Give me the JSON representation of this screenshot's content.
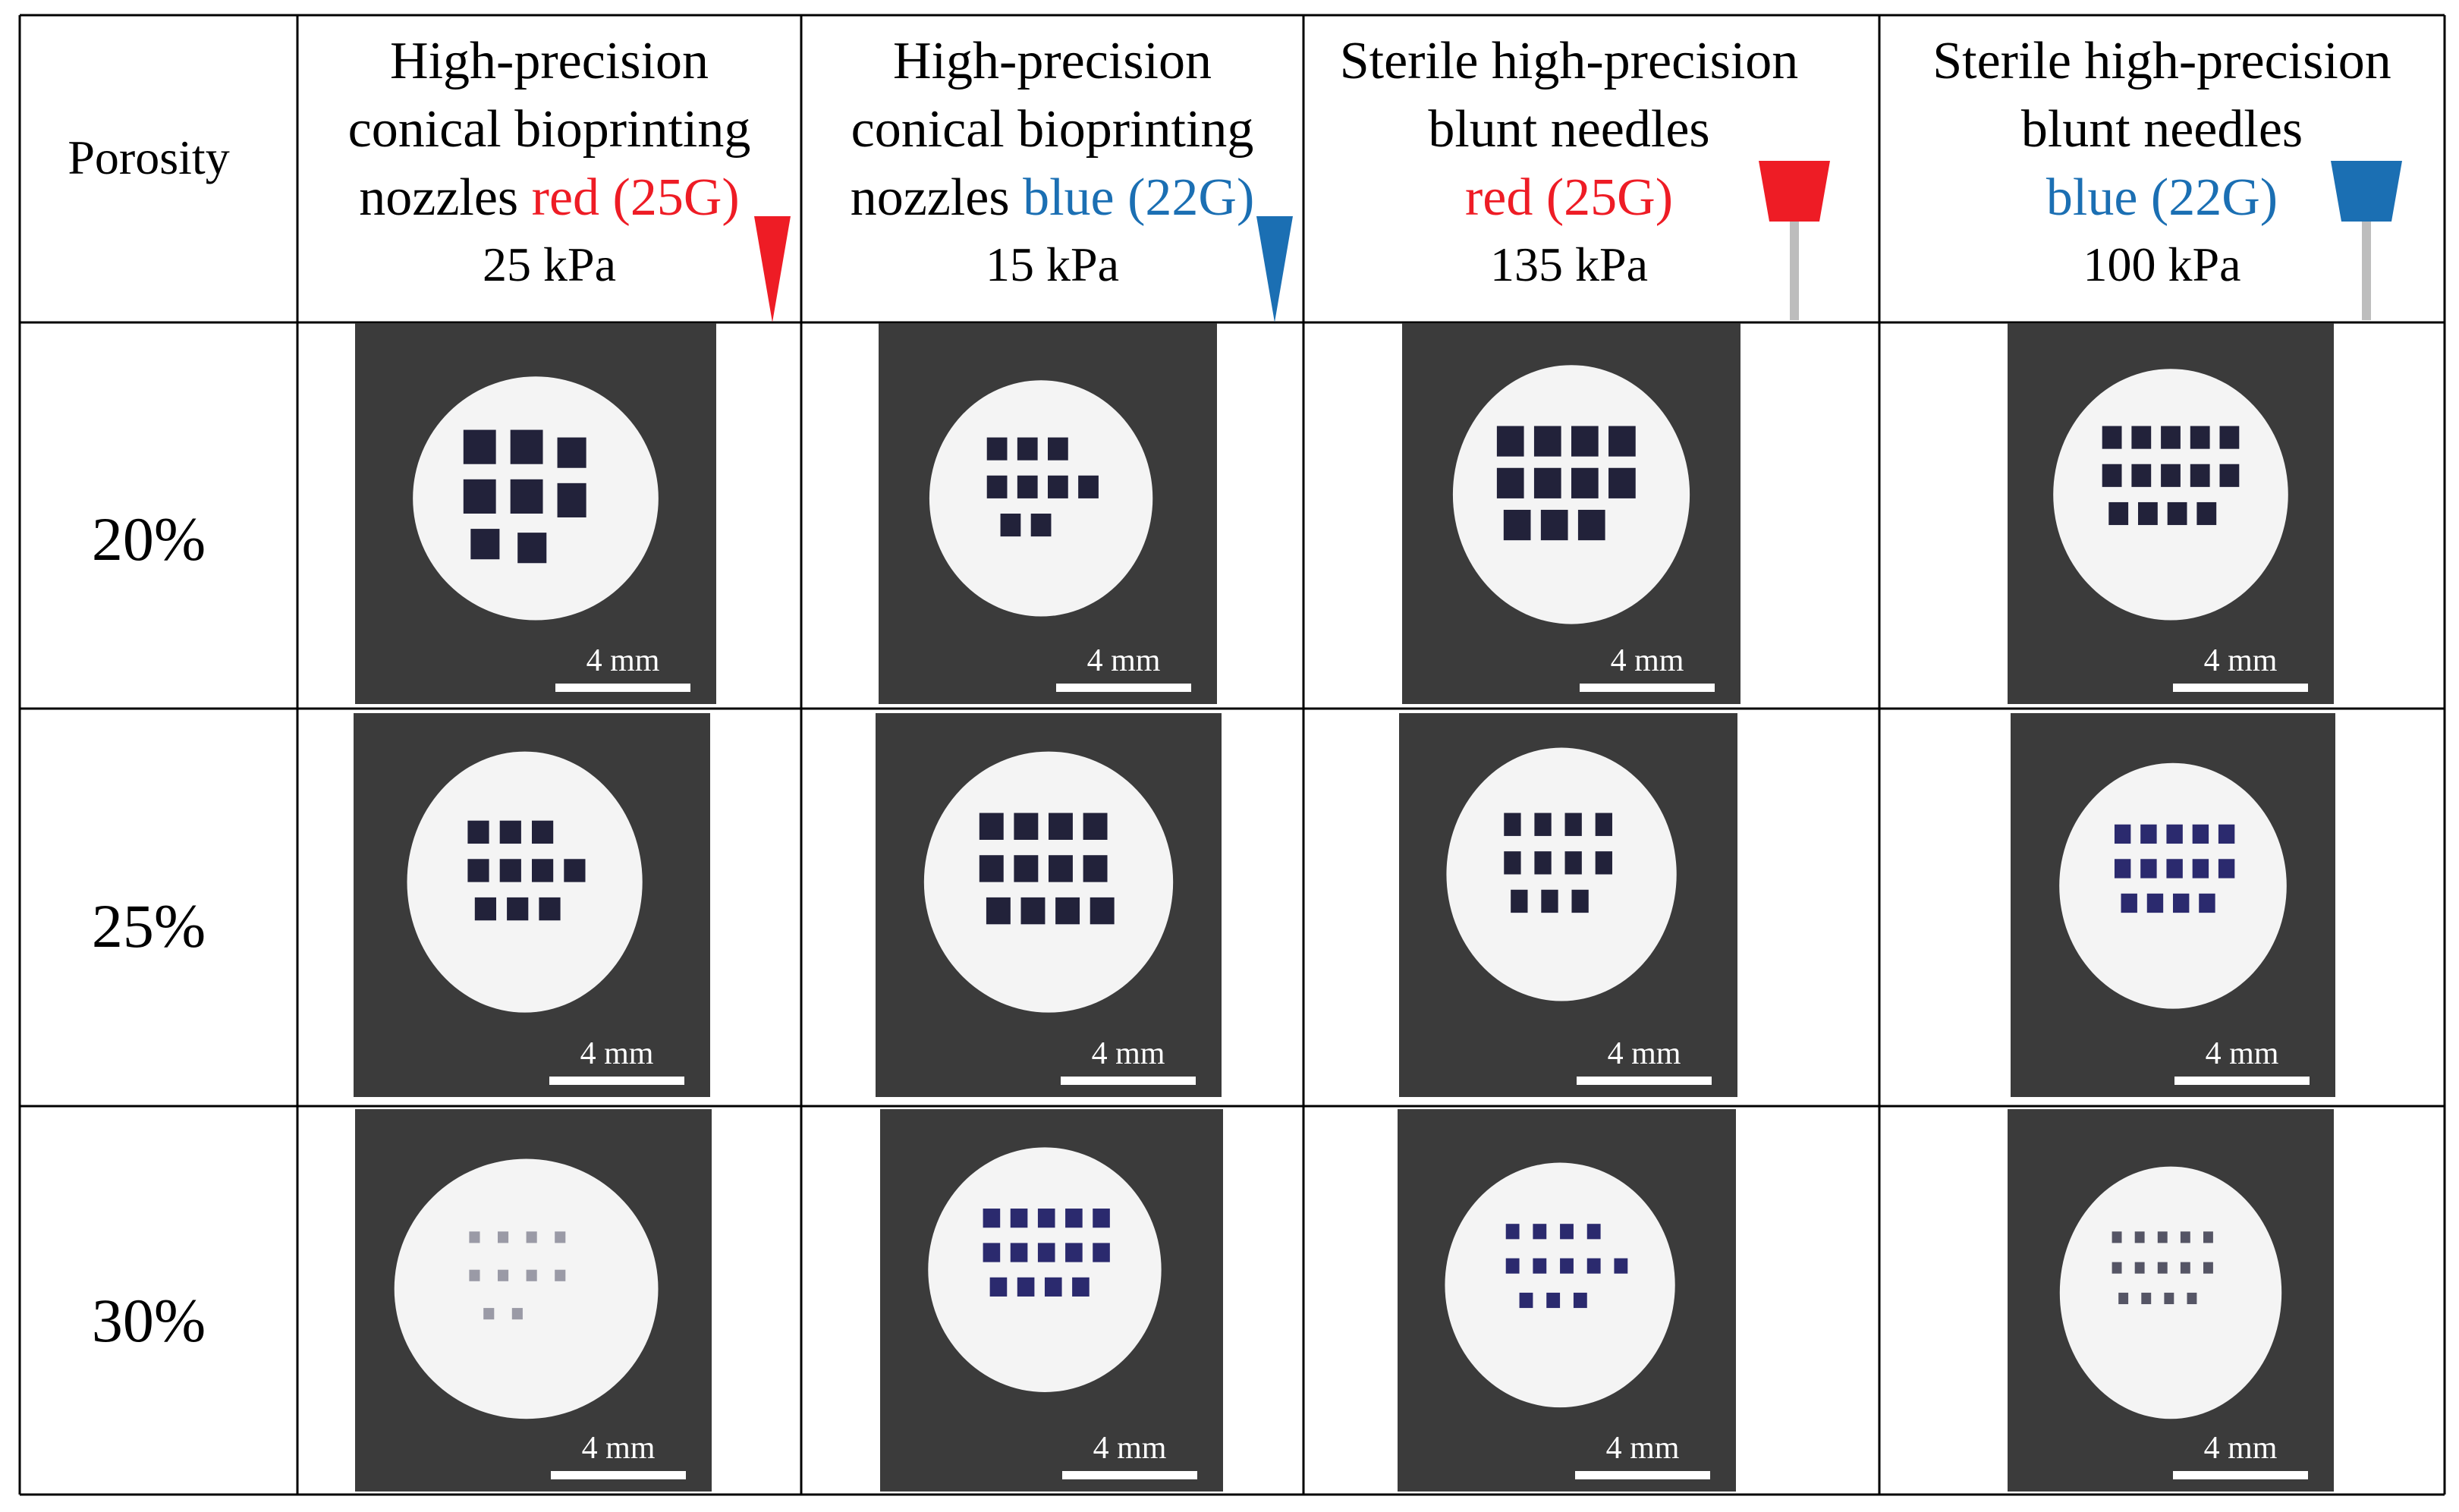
{
  "header": {
    "porosity_label": "Porosity",
    "columns": [
      {
        "lines": [
          "High-precision",
          "conical bioprinting"
        ],
        "line3_prefix": "nozzles ",
        "line3_colored": "red (25G)",
        "line3_color": "red",
        "pressure": "25 kPa",
        "icon": "red-conical-nozzle-icon"
      },
      {
        "lines": [
          "High-precision",
          "conical bioprinting"
        ],
        "line3_prefix": "nozzles ",
        "line3_colored": "blue (22G)",
        "line3_color": "blue",
        "pressure": "15 kPa",
        "icon": "blue-conical-nozzle-icon"
      },
      {
        "lines": [
          "Sterile high-precision",
          "blunt needles"
        ],
        "line3_prefix": "",
        "line3_colored": "red (25G)",
        "line3_color": "red",
        "pressure": "135 kPa",
        "icon": "red-blunt-needle-icon"
      },
      {
        "lines": [
          "Sterile high-precision",
          "blunt needles"
        ],
        "line3_prefix": "",
        "line3_colored": "blue (22G)",
        "line3_color": "blue",
        "pressure": "100 kPa",
        "icon": "blue-blunt-needle-icon"
      }
    ]
  },
  "rows": [
    {
      "porosity": "20%",
      "scale_labels": [
        "4 mm",
        "4 mm",
        "4 mm",
        "4 mm"
      ]
    },
    {
      "porosity": "25%",
      "scale_labels": [
        "4 mm",
        "4 mm",
        "4 mm",
        "4 mm"
      ]
    },
    {
      "porosity": "30%",
      "scale_labels": [
        "4 mm",
        "4 mm",
        "4 mm",
        "4 mm"
      ]
    }
  ],
  "colors": {
    "red": "#ee1c25",
    "blue": "#1b6fb3",
    "photo_background": "#3b3b3b",
    "scaffold": "#f4f4f4",
    "pore": "#22223a"
  }
}
